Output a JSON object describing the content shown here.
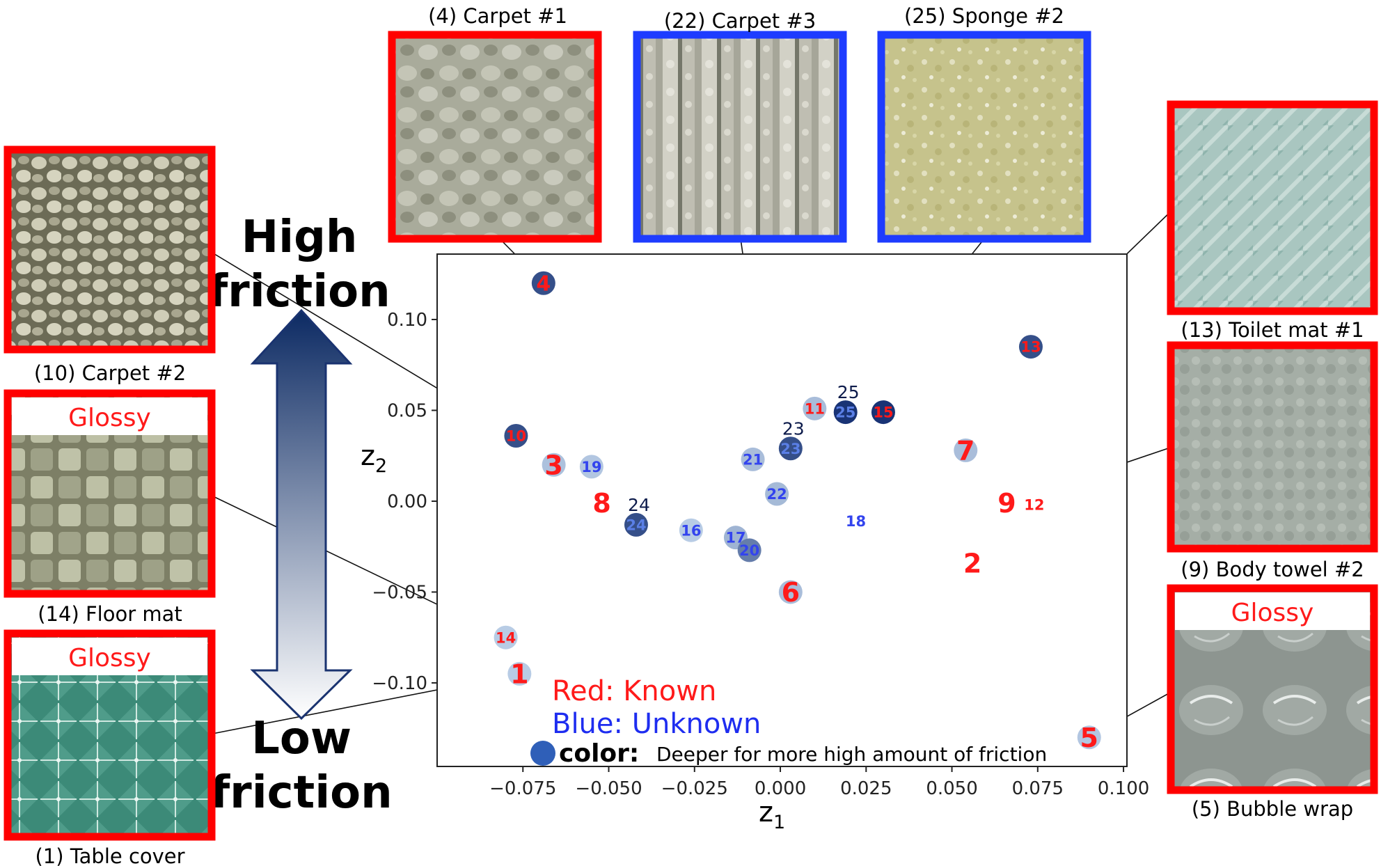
{
  "chart_data": {
    "type": "scatter",
    "xlabel": "z",
    "xlabel_sub": "1",
    "ylabel": "z",
    "ylabel_sub": "2",
    "xlim": [
      -0.1,
      0.101
    ],
    "ylim": [
      -0.146,
      0.136
    ],
    "xticks": [
      -0.075,
      -0.05,
      -0.025,
      0.0,
      0.025,
      0.05,
      0.075,
      0.1
    ],
    "xtick_labels": [
      "−0.075",
      "−0.050",
      "−0.025",
      "0.000",
      "0.025",
      "0.050",
      "0.075",
      "0.100"
    ],
    "yticks": [
      0.1,
      0.05,
      0.0,
      -0.05,
      -0.1
    ],
    "ytick_labels": [
      "0.10",
      "0.05",
      "0.00",
      "−0.05",
      "−0.10"
    ],
    "points": [
      {
        "id": "1",
        "x": -0.076,
        "y": -0.095,
        "group": "known",
        "marker": 0.12,
        "label_size": "large"
      },
      {
        "id": "2",
        "x": 0.056,
        "y": -0.034,
        "group": "known",
        "marker": 0.0,
        "label_size": "large"
      },
      {
        "id": "3",
        "x": -0.066,
        "y": 0.02,
        "group": "known",
        "marker": 0.18,
        "label_size": "large"
      },
      {
        "id": "4",
        "x": -0.069,
        "y": 0.12,
        "group": "known",
        "marker": 0.8,
        "label_size": "medium"
      },
      {
        "id": "5",
        "x": 0.09,
        "y": -0.13,
        "group": "known",
        "marker": 0.15,
        "label_size": "large"
      },
      {
        "id": "6",
        "x": 0.003,
        "y": -0.05,
        "group": "known",
        "marker": 0.2,
        "label_size": "large"
      },
      {
        "id": "7",
        "x": 0.054,
        "y": 0.028,
        "group": "known",
        "marker": 0.2,
        "label_size": "large"
      },
      {
        "id": "8",
        "x": -0.052,
        "y": -0.001,
        "group": "known",
        "marker": 0.0,
        "label_size": "large"
      },
      {
        "id": "9",
        "x": 0.066,
        "y": -0.001,
        "group": "known",
        "marker": 0.0,
        "label_size": "large"
      },
      {
        "id": "10",
        "x": -0.077,
        "y": 0.036,
        "group": "known",
        "marker": 0.8,
        "label_size": "small"
      },
      {
        "id": "11",
        "x": 0.01,
        "y": 0.051,
        "group": "known",
        "marker": 0.2,
        "label_size": "small"
      },
      {
        "id": "12",
        "x": 0.074,
        "y": -0.002,
        "group": "known",
        "marker": 0.0,
        "label_size": "small"
      },
      {
        "id": "13",
        "x": 0.073,
        "y": 0.085,
        "group": "known",
        "marker": 0.8,
        "label_size": "small"
      },
      {
        "id": "14",
        "x": -0.08,
        "y": -0.075,
        "group": "known",
        "marker": 0.12,
        "label_size": "small"
      },
      {
        "id": "15",
        "x": 0.03,
        "y": 0.049,
        "group": "known",
        "marker": 0.95,
        "label_size": "small"
      },
      {
        "id": "16",
        "x": -0.026,
        "y": -0.016,
        "group": "unknown",
        "marker": 0.12,
        "label_size": "small"
      },
      {
        "id": "17",
        "x": -0.013,
        "y": -0.02,
        "group": "unknown",
        "marker": 0.25,
        "label_size": "small"
      },
      {
        "id": "18",
        "x": 0.022,
        "y": -0.011,
        "group": "unknown",
        "marker": 0.0,
        "label_size": "small"
      },
      {
        "id": "19",
        "x": -0.055,
        "y": 0.019,
        "group": "unknown",
        "marker": 0.15,
        "label_size": "small"
      },
      {
        "id": "20",
        "x": -0.009,
        "y": -0.027,
        "group": "unknown",
        "marker": 0.55,
        "label_size": "small"
      },
      {
        "id": "21",
        "x": -0.008,
        "y": 0.023,
        "group": "unknown",
        "marker": 0.2,
        "label_size": "small"
      },
      {
        "id": "22",
        "x": -0.001,
        "y": 0.004,
        "group": "unknown",
        "marker": 0.22,
        "label_size": "small"
      },
      {
        "id": "23",
        "x": 0.003,
        "y": 0.029,
        "group": "unknown",
        "marker": 0.8,
        "label_size": "small",
        "outside_label": "23"
      },
      {
        "id": "24",
        "x": -0.042,
        "y": -0.013,
        "group": "unknown",
        "marker": 0.8,
        "label_size": "small",
        "outside_label": "24"
      },
      {
        "id": "25",
        "x": 0.019,
        "y": 0.049,
        "group": "unknown",
        "marker": 0.95,
        "label_size": "small",
        "outside_label": "25"
      }
    ],
    "legend": {
      "known": "Red: Known",
      "unknown": "Blue: Unknown",
      "color_key": "color:",
      "color_desc": "Deeper for more high amount of friction"
    },
    "colors": {
      "known_text": "#ff1a1a",
      "unknown_text": "#3344ee",
      "marker_light": "#cfe2f5",
      "marker_dark": "#0f2a6e",
      "frame_known": "#ff0000",
      "frame_unknown": "#1e3cff",
      "outside_label": "#0d1b4b"
    }
  },
  "arrow": {
    "high_line1": "High",
    "high_line2": "friction",
    "low_line1": "Low",
    "low_line2": "friction"
  },
  "samples": [
    {
      "key": "s4",
      "caption": "(4) Carpet #1",
      "group": "known",
      "glossy": false,
      "target": "4",
      "texture": "carpet1"
    },
    {
      "key": "s22",
      "caption": "(22) Carpet #3",
      "group": "unknown",
      "glossy": false,
      "target": "22",
      "texture": "carpet3"
    },
    {
      "key": "s25",
      "caption": "(25) Sponge #2",
      "group": "unknown",
      "glossy": false,
      "target": "25",
      "texture": "sponge"
    },
    {
      "key": "s10",
      "caption": "(10) Carpet #2",
      "group": "known",
      "glossy": false,
      "target": "10",
      "texture": "carpet2"
    },
    {
      "key": "s14",
      "caption": "(14) Floor mat",
      "group": "known",
      "glossy": true,
      "glossy_label": "Glossy",
      "target": "14",
      "texture": "floormat"
    },
    {
      "key": "s1",
      "caption": "(1) Table cover",
      "group": "known",
      "glossy": true,
      "glossy_label": "Glossy",
      "target": "1",
      "texture": "tablecover"
    },
    {
      "key": "s13",
      "caption": "(13) Toilet mat #1",
      "group": "known",
      "glossy": false,
      "target": "13",
      "texture": "toiletmat"
    },
    {
      "key": "s9",
      "caption": "(9) Body towel #2",
      "group": "known",
      "glossy": false,
      "target": "9",
      "texture": "towel"
    },
    {
      "key": "s5",
      "caption": "(5) Bubble wrap",
      "group": "known",
      "glossy": true,
      "glossy_label": "Glossy",
      "target": "5",
      "texture": "bubble"
    }
  ]
}
